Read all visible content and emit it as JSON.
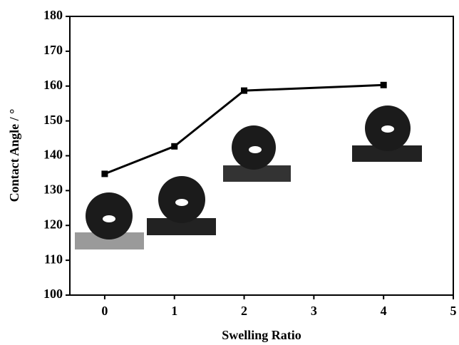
{
  "chart_data": {
    "type": "line",
    "x_label": "Swelling Ratio",
    "y_label": "Contact Angle / °",
    "x": [
      0,
      1,
      2,
      4
    ],
    "series": [
      {
        "color": "#000000",
        "values": [
          134.8,
          142.7,
          158.7,
          160.3
        ]
      }
    ],
    "xlim": [
      -0.5,
      5
    ],
    "xticks": [
      0,
      1,
      2,
      3,
      4,
      5
    ],
    "ylim": [
      100,
      180
    ],
    "yticks": [
      100,
      110,
      120,
      130,
      140,
      150,
      160,
      170,
      180
    ],
    "grid": false
  }
}
